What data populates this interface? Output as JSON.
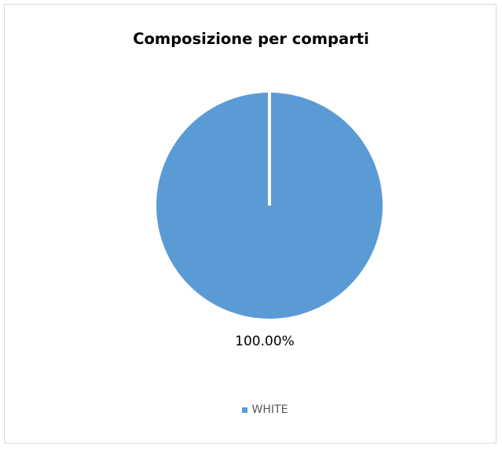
{
  "chart_data": {
    "type": "pie",
    "title": "Composizione per comparti",
    "categories": [
      "WHITE"
    ],
    "values": [
      100.0
    ],
    "data_labels": [
      "100.00%"
    ],
    "legend": {
      "entries": [
        "WHITE"
      ],
      "placement": "bottom"
    },
    "colors": {
      "slices": [
        "#5b9bd5"
      ],
      "border": "#d9d9d9",
      "legend_text": "#595959"
    }
  }
}
